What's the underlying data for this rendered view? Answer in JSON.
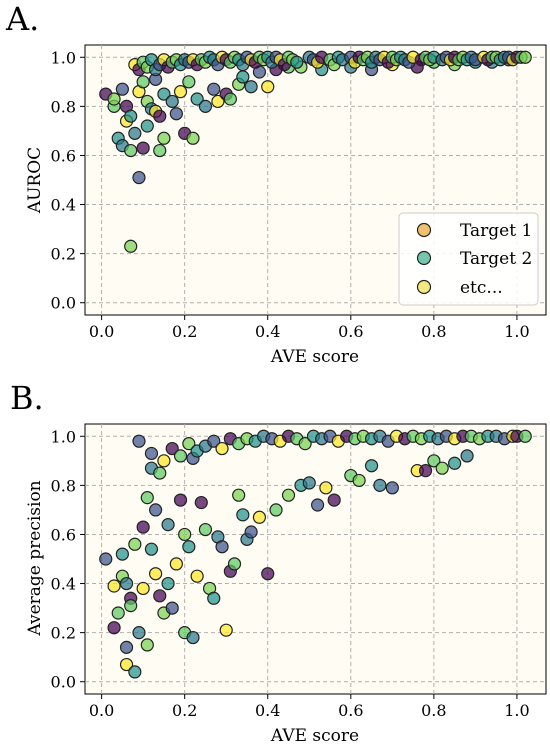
{
  "chart_data": [
    {
      "type": "scatter",
      "panel_label": "A.",
      "xlabel": "AVE score",
      "ylabel": "AUROC",
      "xlim": [
        -0.04,
        1.07
      ],
      "ylim": [
        -0.05,
        1.05
      ],
      "xticks": [
        "0.0",
        "0.2",
        "0.4",
        "0.6",
        "0.8",
        "1.0"
      ],
      "yticks": [
        "0.0",
        "0.2",
        "0.4",
        "0.6",
        "0.8",
        "1.0"
      ],
      "grid": true,
      "legend": {
        "placement": "bottom-right",
        "entries": [
          {
            "label": "Target 1",
            "color": "#e8a838"
          },
          {
            "label": "Target 2",
            "color": "#3fb08f"
          },
          {
            "label": "etc...",
            "color": "#f0e050"
          }
        ]
      },
      "palette": [
        "#440154",
        "#3b528b",
        "#21918c",
        "#5ec962",
        "#fde725",
        "#2a788e",
        "#7ad151"
      ],
      "points": [
        [
          0.01,
          0.85
        ],
        [
          0.03,
          0.8
        ],
        [
          0.03,
          0.83
        ],
        [
          0.04,
          0.67
        ],
        [
          0.05,
          0.64
        ],
        [
          0.05,
          0.87
        ],
        [
          0.06,
          0.74
        ],
        [
          0.06,
          0.8
        ],
        [
          0.07,
          0.62
        ],
        [
          0.07,
          0.23
        ],
        [
          0.07,
          0.76
        ],
        [
          0.08,
          0.69
        ],
        [
          0.09,
          0.51
        ],
        [
          0.09,
          0.86
        ],
        [
          0.1,
          0.63
        ],
        [
          0.1,
          0.9
        ],
        [
          0.11,
          0.82
        ],
        [
          0.11,
          0.72
        ],
        [
          0.12,
          0.79
        ],
        [
          0.13,
          0.91
        ],
        [
          0.13,
          0.78
        ],
        [
          0.14,
          0.76
        ],
        [
          0.14,
          0.62
        ],
        [
          0.15,
          0.67
        ],
        [
          0.15,
          0.85
        ],
        [
          0.17,
          0.82
        ],
        [
          0.18,
          0.77
        ],
        [
          0.19,
          0.86
        ],
        [
          0.2,
          0.69
        ],
        [
          0.21,
          0.9
        ],
        [
          0.22,
          0.67
        ],
        [
          0.23,
          0.83
        ],
        [
          0.25,
          0.8
        ],
        [
          0.27,
          0.87
        ],
        [
          0.28,
          0.82
        ],
        [
          0.3,
          0.85
        ],
        [
          0.31,
          0.83
        ],
        [
          0.33,
          0.89
        ],
        [
          0.34,
          0.92
        ],
        [
          0.36,
          0.88
        ],
        [
          0.38,
          0.94
        ],
        [
          0.4,
          0.88
        ],
        [
          0.42,
          0.95
        ],
        [
          0.45,
          0.96
        ],
        [
          0.48,
          0.96
        ],
        [
          0.53,
          0.95
        ],
        [
          0.6,
          0.96
        ],
        [
          0.65,
          0.95
        ],
        [
          0.7,
          0.97
        ],
        [
          0.76,
          0.96
        ],
        [
          0.8,
          0.98
        ],
        [
          0.85,
          0.97
        ],
        [
          0.9,
          0.98
        ],
        [
          0.94,
          0.98
        ],
        [
          0.98,
          0.99
        ],
        [
          0.08,
          0.97
        ],
        [
          0.09,
          0.95
        ],
        [
          0.1,
          0.98
        ],
        [
          0.11,
          0.96
        ],
        [
          0.12,
          0.99
        ],
        [
          0.13,
          0.95
        ],
        [
          0.14,
          0.97
        ],
        [
          0.15,
          0.99
        ],
        [
          0.16,
          0.96
        ],
        [
          0.17,
          0.98
        ],
        [
          0.18,
          0.99
        ],
        [
          0.19,
          0.97
        ],
        [
          0.2,
          0.99
        ],
        [
          0.21,
          0.98
        ],
        [
          0.22,
          0.99
        ],
        [
          0.23,
          0.97
        ],
        [
          0.24,
          0.99
        ],
        [
          0.25,
          0.98
        ],
        [
          0.26,
          1.0
        ],
        [
          0.27,
          0.99
        ],
        [
          0.28,
          0.97
        ],
        [
          0.29,
          1.0
        ],
        [
          0.3,
          0.99
        ],
        [
          0.31,
          0.98
        ],
        [
          0.32,
          1.0
        ],
        [
          0.33,
          0.99
        ],
        [
          0.34,
          0.97
        ],
        [
          0.35,
          1.0
        ],
        [
          0.36,
          0.99
        ],
        [
          0.37,
          0.98
        ],
        [
          0.38,
          1.0
        ],
        [
          0.39,
          0.99
        ],
        [
          0.4,
          1.0
        ],
        [
          0.41,
          0.98
        ],
        [
          0.42,
          1.0
        ],
        [
          0.43,
          0.99
        ],
        [
          0.44,
          0.97
        ],
        [
          0.45,
          1.0
        ],
        [
          0.46,
          0.99
        ],
        [
          0.47,
          0.98
        ],
        [
          0.5,
          1.0
        ],
        [
          0.51,
          0.99
        ],
        [
          0.52,
          0.98
        ],
        [
          0.53,
          1.0
        ],
        [
          0.55,
          0.99
        ],
        [
          0.56,
          0.97
        ],
        [
          0.57,
          1.0
        ],
        [
          0.58,
          0.99
        ],
        [
          0.6,
          1.0
        ],
        [
          0.61,
          0.98
        ],
        [
          0.62,
          1.0
        ],
        [
          0.63,
          0.99
        ],
        [
          0.64,
          1.0
        ],
        [
          0.65,
          0.98
        ],
        [
          0.66,
          1.0
        ],
        [
          0.67,
          0.99
        ],
        [
          0.68,
          1.0
        ],
        [
          0.69,
          0.98
        ],
        [
          0.7,
          1.0
        ],
        [
          0.71,
          0.99
        ],
        [
          0.72,
          1.0
        ],
        [
          0.73,
          0.99
        ],
        [
          0.74,
          0.98
        ],
        [
          0.75,
          1.0
        ],
        [
          0.77,
          0.99
        ],
        [
          0.78,
          1.0
        ],
        [
          0.79,
          0.99
        ],
        [
          0.8,
          1.0
        ],
        [
          0.82,
          0.99
        ],
        [
          0.83,
          1.0
        ],
        [
          0.84,
          0.99
        ],
        [
          0.85,
          1.0
        ],
        [
          0.86,
          0.99
        ],
        [
          0.87,
          1.0
        ],
        [
          0.88,
          0.99
        ],
        [
          0.89,
          1.0
        ],
        [
          0.9,
          0.99
        ],
        [
          0.92,
          1.0
        ],
        [
          0.93,
          0.99
        ],
        [
          0.94,
          1.0
        ],
        [
          0.95,
          1.0
        ],
        [
          0.96,
          0.99
        ],
        [
          0.97,
          1.0
        ],
        [
          0.98,
          1.0
        ],
        [
          0.99,
          0.99
        ],
        [
          1.0,
          1.0
        ],
        [
          1.01,
          1.0
        ],
        [
          1.02,
          1.0
        ]
      ]
    },
    {
      "type": "scatter",
      "panel_label": "B.",
      "xlabel": "AVE score",
      "ylabel": "Average precision",
      "xlim": [
        -0.04,
        1.07
      ],
      "ylim": [
        -0.05,
        1.05
      ],
      "xticks": [
        "0.0",
        "0.2",
        "0.4",
        "0.6",
        "0.8",
        "1.0"
      ],
      "yticks": [
        "0.0",
        "0.2",
        "0.4",
        "0.6",
        "0.8",
        "1.0"
      ],
      "grid": true,
      "palette": [
        "#440154",
        "#3b528b",
        "#21918c",
        "#5ec962",
        "#fde725",
        "#2a788e",
        "#7ad151"
      ],
      "points": [
        [
          0.01,
          0.5
        ],
        [
          0.03,
          0.39
        ],
        [
          0.03,
          0.22
        ],
        [
          0.04,
          0.28
        ],
        [
          0.05,
          0.43
        ],
        [
          0.05,
          0.52
        ],
        [
          0.06,
          0.4
        ],
        [
          0.06,
          0.14
        ],
        [
          0.06,
          0.07
        ],
        [
          0.07,
          0.34
        ],
        [
          0.07,
          0.31
        ],
        [
          0.08,
          0.56
        ],
        [
          0.08,
          0.04
        ],
        [
          0.09,
          0.2
        ],
        [
          0.09,
          0.98
        ],
        [
          0.1,
          0.38
        ],
        [
          0.1,
          0.63
        ],
        [
          0.11,
          0.75
        ],
        [
          0.11,
          0.15
        ],
        [
          0.12,
          0.54
        ],
        [
          0.12,
          0.87
        ],
        [
          0.13,
          0.7
        ],
        [
          0.13,
          0.44
        ],
        [
          0.14,
          0.35
        ],
        [
          0.14,
          0.85
        ],
        [
          0.15,
          0.28
        ],
        [
          0.16,
          0.4
        ],
        [
          0.16,
          0.64
        ],
        [
          0.17,
          0.3
        ],
        [
          0.18,
          0.48
        ],
        [
          0.19,
          0.74
        ],
        [
          0.2,
          0.2
        ],
        [
          0.2,
          0.6
        ],
        [
          0.21,
          0.55
        ],
        [
          0.22,
          0.18
        ],
        [
          0.22,
          0.91
        ],
        [
          0.23,
          0.43
        ],
        [
          0.24,
          0.73
        ],
        [
          0.25,
          0.62
        ],
        [
          0.26,
          0.38
        ],
        [
          0.27,
          0.34
        ],
        [
          0.28,
          0.59
        ],
        [
          0.29,
          0.55
        ],
        [
          0.3,
          0.21
        ],
        [
          0.31,
          0.45
        ],
        [
          0.32,
          0.48
        ],
        [
          0.33,
          0.76
        ],
        [
          0.34,
          0.68
        ],
        [
          0.35,
          0.58
        ],
        [
          0.36,
          0.61
        ],
        [
          0.38,
          0.67
        ],
        [
          0.4,
          0.44
        ],
        [
          0.42,
          0.7
        ],
        [
          0.45,
          0.76
        ],
        [
          0.48,
          0.8
        ],
        [
          0.5,
          0.81
        ],
        [
          0.52,
          0.72
        ],
        [
          0.54,
          0.79
        ],
        [
          0.56,
          0.74
        ],
        [
          0.6,
          0.84
        ],
        [
          0.62,
          0.82
        ],
        [
          0.65,
          0.88
        ],
        [
          0.67,
          0.8
        ],
        [
          0.7,
          0.79
        ],
        [
          0.76,
          0.86
        ],
        [
          0.78,
          0.86
        ],
        [
          0.8,
          0.9
        ],
        [
          0.82,
          0.87
        ],
        [
          0.85,
          0.89
        ],
        [
          0.88,
          0.92
        ],
        [
          0.12,
          0.93
        ],
        [
          0.15,
          0.9
        ],
        [
          0.17,
          0.95
        ],
        [
          0.19,
          0.92
        ],
        [
          0.21,
          0.97
        ],
        [
          0.23,
          0.94
        ],
        [
          0.25,
          0.96
        ],
        [
          0.27,
          0.98
        ],
        [
          0.29,
          0.95
        ],
        [
          0.31,
          0.99
        ],
        [
          0.33,
          0.97
        ],
        [
          0.35,
          0.99
        ],
        [
          0.37,
          0.98
        ],
        [
          0.39,
          1.0
        ],
        [
          0.41,
          0.99
        ],
        [
          0.43,
          0.98
        ],
        [
          0.45,
          1.0
        ],
        [
          0.47,
          0.99
        ],
        [
          0.49,
          0.97
        ],
        [
          0.51,
          1.0
        ],
        [
          0.53,
          0.99
        ],
        [
          0.55,
          1.0
        ],
        [
          0.57,
          0.98
        ],
        [
          0.59,
          1.0
        ],
        [
          0.61,
          0.99
        ],
        [
          0.63,
          1.0
        ],
        [
          0.65,
          0.99
        ],
        [
          0.67,
          1.0
        ],
        [
          0.69,
          0.98
        ],
        [
          0.71,
          1.0
        ],
        [
          0.73,
          0.99
        ],
        [
          0.75,
          1.0
        ],
        [
          0.77,
          0.99
        ],
        [
          0.79,
          1.0
        ],
        [
          0.81,
          0.99
        ],
        [
          0.83,
          1.0
        ],
        [
          0.85,
          0.99
        ],
        [
          0.87,
          1.0
        ],
        [
          0.89,
          1.0
        ],
        [
          0.91,
          0.99
        ],
        [
          0.93,
          1.0
        ],
        [
          0.95,
          1.0
        ],
        [
          0.97,
          0.99
        ],
        [
          0.99,
          1.0
        ],
        [
          1.0,
          1.0
        ],
        [
          1.02,
          1.0
        ]
      ]
    }
  ]
}
